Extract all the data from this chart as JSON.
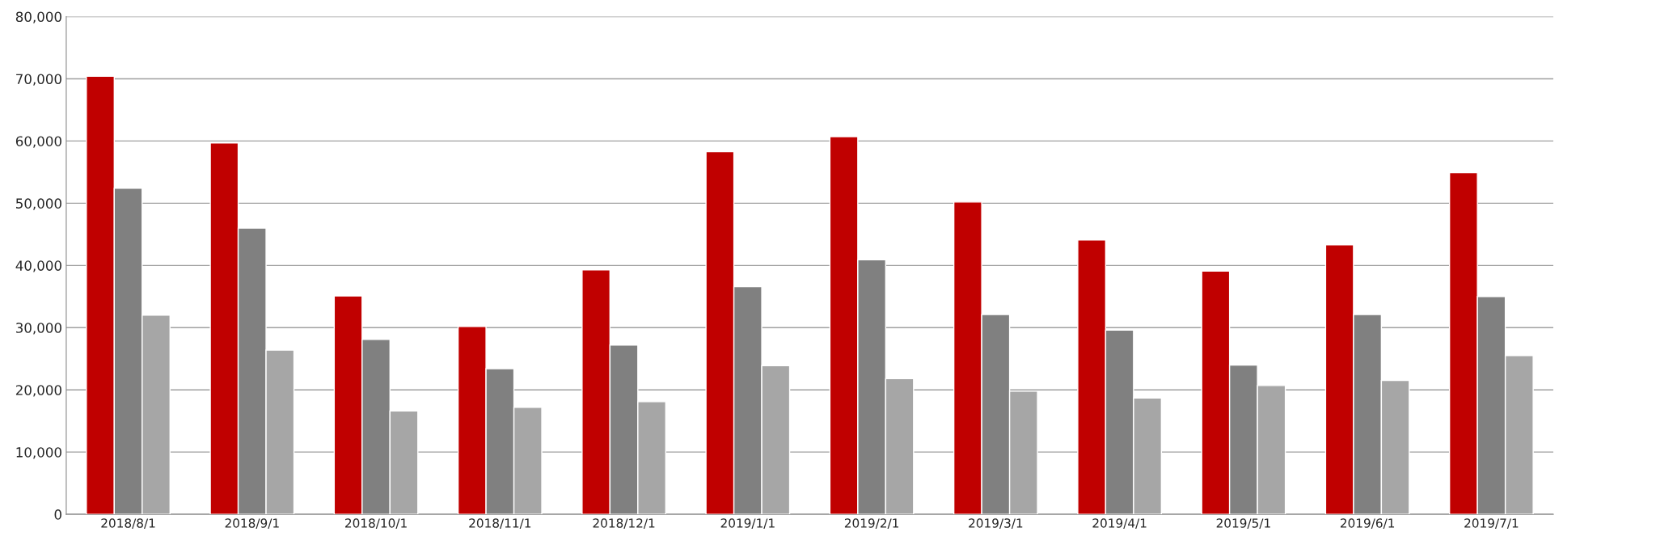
{
  "chart_data": {
    "type": "bar",
    "categories": [
      "2018/8/1",
      "2018/9/1",
      "2018/10/1",
      "2018/11/1",
      "2018/12/1",
      "2019/1/1",
      "2019/2/1",
      "2019/3/1",
      "2019/4/1",
      "2019/5/1",
      "2019/6/1",
      "2019/7/1"
    ],
    "series": [
      {
        "color": "#c00000",
        "values": [
          70400,
          59700,
          35100,
          30200,
          39300,
          58300,
          60700,
          50200,
          44100,
          39100,
          43300,
          54900
        ]
      },
      {
        "color": "#808080",
        "values": [
          52400,
          46000,
          28100,
          23400,
          27200,
          36600,
          40900,
          32100,
          29600,
          24000,
          32100,
          35000
        ]
      },
      {
        "color": "#a6a6a6",
        "values": [
          32000,
          26400,
          16600,
          17200,
          18100,
          23900,
          21800,
          19800,
          18700,
          20700,
          21500,
          25500
        ]
      }
    ],
    "ylim": [
      0,
      80000
    ],
    "yticks": [
      0,
      {
        "value": 10000,
        "label": "10,000"
      },
      {
        "value": 20000,
        "label": "20,000"
      },
      {
        "value": 30000,
        "label": "30,000"
      },
      {
        "value": 40000,
        "label": "40,000"
      },
      {
        "value": 50000,
        "label": "50,000"
      },
      {
        "value": 60000,
        "label": "60,000"
      },
      {
        "value": 70000,
        "label": "70,000"
      },
      {
        "value": 80000,
        "label": "80,000"
      }
    ],
    "grid": "y"
  }
}
